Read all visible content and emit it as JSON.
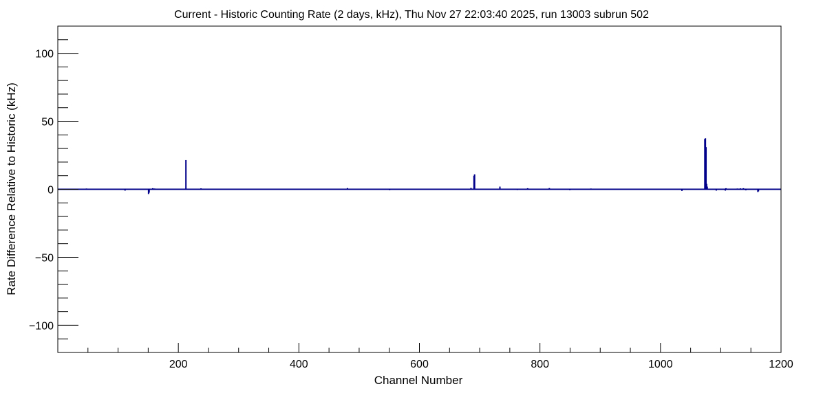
{
  "chart_data": {
    "type": "bar",
    "title": "Current - Historic Counting Rate (2 days, kHz), Thu Nov 27 22:03:40 2025, run 13003 subrun 502",
    "xlabel": "Channel Number",
    "ylabel": "Rate Difference Relative to Historic (kHz)",
    "xlim": [
      0,
      1200
    ],
    "ylim": [
      -120,
      120
    ],
    "x_ticks": [
      200,
      400,
      600,
      800,
      1000,
      1200
    ],
    "y_ticks": [
      -100,
      -50,
      0,
      50,
      100
    ],
    "x_tick_labels": [
      "200",
      "400",
      "600",
      "800",
      "1000",
      "1200"
    ],
    "y_tick_labels": [
      "−100",
      "−50",
      "0",
      "50",
      "100"
    ],
    "grid": false,
    "legend": "none",
    "color": "#00008b",
    "baseline": 0,
    "points": [
      {
        "x": 47,
        "y": 0.6
      },
      {
        "x": 111,
        "y": -1.0
      },
      {
        "x": 150,
        "y": -3.5
      },
      {
        "x": 151,
        "y": -2.5
      },
      {
        "x": 157,
        "y": 0.8
      },
      {
        "x": 160,
        "y": 0.6
      },
      {
        "x": 212,
        "y": 21.5
      },
      {
        "x": 237,
        "y": 0.7
      },
      {
        "x": 441,
        "y": 0.5
      },
      {
        "x": 480,
        "y": 0.9
      },
      {
        "x": 550,
        "y": -0.7
      },
      {
        "x": 685,
        "y": 1.0
      },
      {
        "x": 690,
        "y": 10.0
      },
      {
        "x": 691,
        "y": 11.0
      },
      {
        "x": 733,
        "y": 2.0
      },
      {
        "x": 762,
        "y": -0.6
      },
      {
        "x": 779,
        "y": 0.8
      },
      {
        "x": 815,
        "y": 0.9
      },
      {
        "x": 849,
        "y": -0.7
      },
      {
        "x": 884,
        "y": 0.6
      },
      {
        "x": 1035,
        "y": -1.2
      },
      {
        "x": 1073,
        "y": 37.0
      },
      {
        "x": 1074,
        "y": 37.5
      },
      {
        "x": 1075,
        "y": 31.0
      },
      {
        "x": 1076,
        "y": 4.0
      },
      {
        "x": 1077,
        "y": 2.0
      },
      {
        "x": 1092,
        "y": -1.0
      },
      {
        "x": 1107,
        "y": -1.0
      },
      {
        "x": 1108,
        "y": 0.8
      },
      {
        "x": 1127,
        "y": 0.6
      },
      {
        "x": 1132,
        "y": 0.7
      },
      {
        "x": 1137,
        "y": 0.8
      },
      {
        "x": 1141,
        "y": -0.8
      },
      {
        "x": 1161,
        "y": -2.0
      },
      {
        "x": 1162,
        "y": -1.5
      }
    ]
  }
}
